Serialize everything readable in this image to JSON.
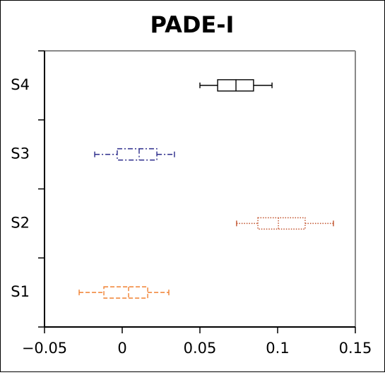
{
  "chart_data": {
    "type": "boxplot",
    "title": "PADE-I",
    "categories": [
      "S1",
      "S2",
      "S3",
      "S4"
    ],
    "boxes": [
      {
        "color": "#f08030",
        "linestyle": "dashed",
        "whislo": -0.0277,
        "q1": -0.0118,
        "med": 0.0041,
        "q3": 0.0164,
        "whishi": 0.03
      },
      {
        "color": "#c0502a",
        "linestyle": "dotted",
        "whislo": 0.0736,
        "q1": 0.0873,
        "med": 0.1005,
        "q3": 0.1177,
        "whishi": 0.1359
      },
      {
        "color": "#2a2a8a",
        "linestyle": "dashdot",
        "whislo": -0.0177,
        "q1": -0.0032,
        "med": 0.0109,
        "q3": 0.0223,
        "whishi": 0.0336
      },
      {
        "color": "#000000",
        "linestyle": "solid",
        "whislo": 0.05,
        "q1": 0.0614,
        "med": 0.0732,
        "q3": 0.0845,
        "whishi": 0.0964
      }
    ],
    "xlim": [
      -0.05,
      0.15
    ],
    "xticks": [
      {
        "value": -0.05,
        "label": "−0.05"
      },
      0,
      0.05,
      0.1,
      0.15
    ]
  }
}
